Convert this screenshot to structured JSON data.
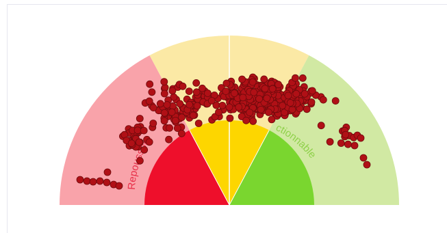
{
  "chart_data": {
    "type": "scatter",
    "subtype": "semicircular gauge with scatter overlay",
    "zones": [
      {
        "label": "Repoussoir",
        "outer_color": "#f9a3aa",
        "inner_color": "#ee0f2b",
        "label_color": "#e8304a",
        "angle_range_deg": [
          180,
          118
        ]
      },
      {
        "label": "",
        "outer_color": "#fbe9a5",
        "inner_color": "#fdd600",
        "label_color": "",
        "angle_range_deg": [
          118,
          62
        ]
      },
      {
        "label": "Actionnable",
        "outer_color": "#d1e9a3",
        "inner_color": "#7ad62f",
        "label_color": "#8fd14a",
        "angle_range_deg": [
          62,
          0
        ]
      }
    ],
    "visible_labels": [
      "Repoussoir",
      "ctionnable"
    ],
    "point_style": {
      "fill": "#b01016",
      "stroke": "#6e0a0c"
    },
    "point_count_approx": 520,
    "axes": "none",
    "grid": false,
    "legend": "none"
  }
}
